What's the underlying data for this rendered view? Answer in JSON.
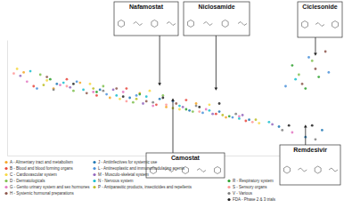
{
  "chart_data": {
    "type": "scatter",
    "xlim": [
      0,
      100
    ],
    "ylim": [
      0,
      100
    ],
    "tick_labels": false,
    "grid": false,
    "series": [
      {
        "name": "A - Alimentary tract and metabolism",
        "color": "#f5a623",
        "x": [
          5,
          14,
          22,
          31,
          40,
          48,
          57,
          66
        ],
        "values": [
          72,
          58,
          63,
          50,
          54,
          42,
          45,
          33
        ]
      },
      {
        "name": "B - Blood and blood forming organs",
        "color": "#e8453c",
        "x": [
          8,
          18,
          27,
          36,
          45,
          54,
          63,
          72
        ],
        "values": [
          60,
          66,
          52,
          58,
          44,
          48,
          36,
          30
        ]
      },
      {
        "name": "C - Cardiovascular system",
        "color": "#f7d842",
        "x": [
          3,
          12,
          25,
          34,
          43,
          52,
          61,
          76
        ],
        "values": [
          75,
          65,
          62,
          49,
          56,
          40,
          44,
          28
        ]
      },
      {
        "name": "D - Dermatologicals",
        "color": "#7fbf4f",
        "x": [
          10,
          20,
          29,
          38,
          47,
          56,
          88,
          92
        ],
        "values": [
          70,
          56,
          60,
          46,
          52,
          38,
          70,
          82
        ]
      },
      {
        "name": "G - Genito urinary system and sex hormones",
        "color": "#e377c2",
        "x": [
          6,
          16,
          26,
          35,
          44,
          60,
          70,
          86
        ],
        "values": [
          64,
          61,
          55,
          55,
          43,
          40,
          34,
          20
        ]
      },
      {
        "name": "H - Systemic hormonal preparations",
        "color": "#8c564b",
        "x": [
          12,
          24,
          33,
          42,
          51,
          89,
          93,
          96
        ],
        "values": [
          68,
          54,
          58,
          47,
          45,
          62,
          75,
          90
        ]
      },
      {
        "name": "J - Antiinfectives for systemic use",
        "color": "#1f77b4",
        "x": [
          15,
          28,
          37,
          46,
          55,
          64,
          73,
          82,
          90,
          95
        ],
        "values": [
          62,
          57,
          50,
          49,
          39,
          38,
          31,
          25,
          16,
          22
        ]
      },
      {
        "name": "L - Antineoplastic and immunomodulating agents",
        "color": "#4a90d9",
        "x": [
          9,
          21,
          30,
          39,
          50,
          59,
          68,
          84,
          91,
          97
        ],
        "values": [
          58,
          64,
          53,
          52,
          47,
          37,
          33,
          60,
          85,
          72
        ]
      },
      {
        "name": "M - Musculo-skeletal system",
        "color": "#9467bd",
        "x": [
          4,
          19,
          32,
          41,
          53,
          62,
          71,
          80
        ],
        "values": [
          69,
          59,
          57,
          45,
          42,
          36,
          35,
          27
        ]
      },
      {
        "name": "N - Nervous system",
        "color": "#17becf",
        "x": [
          7,
          17,
          23,
          33,
          42,
          52,
          61,
          70,
          79,
          87
        ],
        "values": [
          73,
          63,
          57,
          52,
          51,
          43,
          39,
          32,
          29,
          66
        ]
      },
      {
        "name": "P - Antiparasitic products, insecticides and repellents",
        "color": "#bcbd22",
        "x": [
          11,
          26,
          39,
          50,
          65,
          75
        ],
        "values": [
          61,
          58,
          49,
          41,
          35,
          31
        ]
      },
      {
        "name": "R - Respiratory system",
        "color": "#2ca02c",
        "x": [
          13,
          27,
          40,
          54,
          67,
          86,
          90,
          94
        ],
        "values": [
          66,
          55,
          53,
          40,
          34,
          78,
          58,
          68
        ]
      },
      {
        "name": "S - Sensory organs",
        "color": "#ff9896",
        "x": [
          2,
          18,
          36,
          48,
          58,
          74
        ],
        "values": [
          71,
          60,
          47,
          44,
          38,
          29
        ]
      },
      {
        "name": "V - Various",
        "color": "#7f7f7f",
        "x": [
          14,
          29,
          44,
          57,
          69,
          83,
          93
        ],
        "values": [
          57,
          56,
          46,
          43,
          36,
          22,
          14
        ]
      },
      {
        "name": "FDA - Phase 2 & 3 trials",
        "color": "#222222",
        "x": [
          20,
          35,
          47,
          58,
          64,
          85,
          92
        ],
        "values": [
          62,
          51,
          50,
          42,
          45,
          26,
          26
        ]
      }
    ],
    "annotations": [
      {
        "text": "Nafamostat",
        "x": 46,
        "y": 62
      },
      {
        "text": "Niclosamide",
        "x": 63,
        "y": 58
      },
      {
        "text": "Ciclesonide",
        "x": 93,
        "y": 88
      },
      {
        "text": "Camostat",
        "x": 50,
        "y": 48
      },
      {
        "text": "Remdesivir",
        "x": 90,
        "y": 25
      }
    ]
  }
}
